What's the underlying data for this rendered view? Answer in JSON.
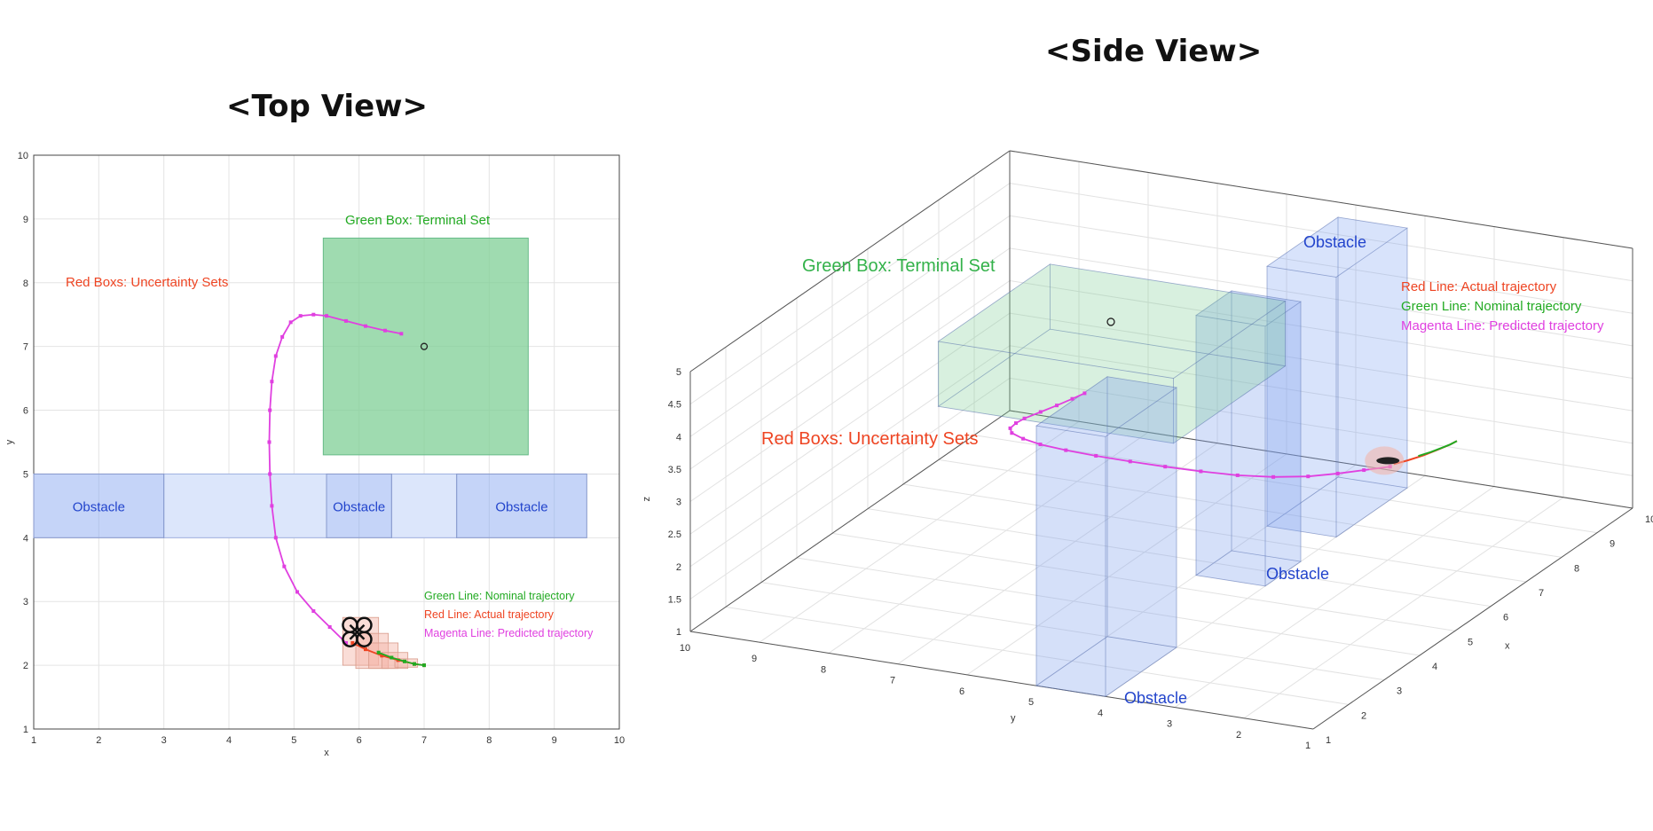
{
  "titles": {
    "top": "<Top View>",
    "side": "<Side View>"
  },
  "colors": {
    "terminal_fill": "#7fcf95",
    "obstacle_fill": "#7f9ff0",
    "obstacle_light": "#dce6fb",
    "uncertainty": "#f4b3a6",
    "nominal": "#22aa22",
    "actual": "#ee4422",
    "predicted": "#e040e0",
    "obstacle_label": "#2244cc",
    "uncertainty_label": "#ee4422"
  },
  "chart_data": [
    {
      "type": "line",
      "title": "<Top View>",
      "xlabel": "x",
      "ylabel": "y",
      "xlim": [
        1,
        10
      ],
      "ylim": [
        1,
        10
      ],
      "xticks": [
        "1",
        "2",
        "3",
        "4",
        "5",
        "6",
        "7",
        "8",
        "9",
        "10"
      ],
      "yticks": [
        "1",
        "2",
        "3",
        "4",
        "5",
        "6",
        "7",
        "8",
        "9",
        "10"
      ],
      "grid": true,
      "terminal_set": {
        "x": [
          5.45,
          8.6
        ],
        "y": [
          5.3,
          8.7
        ]
      },
      "terminal_point": {
        "x": 7.0,
        "y": 7.0
      },
      "obstacles": [
        {
          "label": "Obstacle",
          "x": [
            1,
            3
          ],
          "y": [
            4,
            5
          ]
        },
        {
          "label": "Obstacle",
          "x": [
            5.5,
            6.5
          ],
          "y": [
            4,
            5
          ]
        },
        {
          "label": "Obstacle",
          "x": [
            7.5,
            9.5
          ],
          "y": [
            4,
            5
          ]
        }
      ],
      "obstacle_gaps": [
        {
          "x": [
            3,
            5.5
          ],
          "y": [
            4,
            5
          ]
        },
        {
          "x": [
            6.5,
            7.5
          ],
          "y": [
            4,
            5
          ]
        }
      ],
      "annotations": {
        "terminal": "Green Box: Terminal Set",
        "uncertainty": "Red Boxs: Uncertainty Sets",
        "legend": [
          "Green Line: Nominal trajectory",
          "Red Line: Actual trajectory",
          "Magenta Line: Predicted trajectory"
        ]
      },
      "series": [
        {
          "name": "Predicted trajectory",
          "color": "#e040e0",
          "x": [
            5.8,
            5.55,
            5.3,
            5.05,
            4.85,
            4.72,
            4.66,
            4.63,
            4.62,
            4.63,
            4.66,
            4.72,
            4.82,
            4.95,
            5.1,
            5.3,
            5.5,
            5.8,
            6.1,
            6.4,
            6.65
          ],
          "y": [
            2.35,
            2.6,
            2.85,
            3.15,
            3.55,
            4.0,
            4.5,
            5.0,
            5.5,
            6.0,
            6.45,
            6.85,
            7.15,
            7.38,
            7.48,
            7.5,
            7.48,
            7.4,
            7.32,
            7.25,
            7.2
          ]
        },
        {
          "name": "Actual trajectory",
          "color": "#ee4422",
          "x": [
            5.9,
            6.1,
            6.35,
            6.6,
            6.85,
            7.0
          ],
          "y": [
            2.35,
            2.25,
            2.15,
            2.08,
            2.02,
            2.0
          ]
        },
        {
          "name": "Nominal trajectory",
          "color": "#22aa22",
          "x": [
            6.3,
            6.5,
            6.7,
            6.85,
            7.0
          ],
          "y": [
            2.2,
            2.12,
            2.06,
            2.02,
            2.0
          ]
        }
      ],
      "uncertainty_boxes": [
        {
          "x": [
            5.75,
            6.3
          ],
          "y": [
            2.0,
            2.75
          ]
        },
        {
          "x": [
            5.95,
            6.45
          ],
          "y": [
            1.95,
            2.5
          ]
        },
        {
          "x": [
            6.15,
            6.6
          ],
          "y": [
            1.95,
            2.35
          ]
        },
        {
          "x": [
            6.35,
            6.75
          ],
          "y": [
            1.95,
            2.2
          ]
        },
        {
          "x": [
            6.55,
            6.9
          ],
          "y": [
            1.97,
            2.1
          ]
        }
      ],
      "drone": {
        "x": 5.97,
        "y": 2.52
      }
    },
    {
      "type": "line",
      "title": "<Side View>",
      "xlabel": "x",
      "ylabel": "y",
      "zlabel": "z",
      "xlim": [
        1,
        10
      ],
      "ylim": [
        1,
        10
      ],
      "zlim": [
        1,
        5
      ],
      "xticks": [
        "1",
        "2",
        "3",
        "4",
        "5",
        "6",
        "7",
        "8",
        "9",
        "10"
      ],
      "yticks": [
        "10",
        "9",
        "8",
        "7",
        "6",
        "5",
        "4",
        "3",
        "2",
        "1"
      ],
      "zticks": [
        "1",
        "1.5",
        "2",
        "2.5",
        "3",
        "3.5",
        "4",
        "4.5",
        "5"
      ],
      "grid": true,
      "annotations": {
        "terminal": "Green Box: Terminal Set",
        "uncertainty": "Red Boxs: Uncertainty Sets",
        "obstacles": [
          "Obstacle",
          "Obstacle",
          "Obstacle"
        ],
        "legend": [
          "Red Line: Actual trajectory",
          "Green Line: Nominal trajectory",
          "Magenta Line: Predicted trajectory"
        ]
      }
    }
  ]
}
